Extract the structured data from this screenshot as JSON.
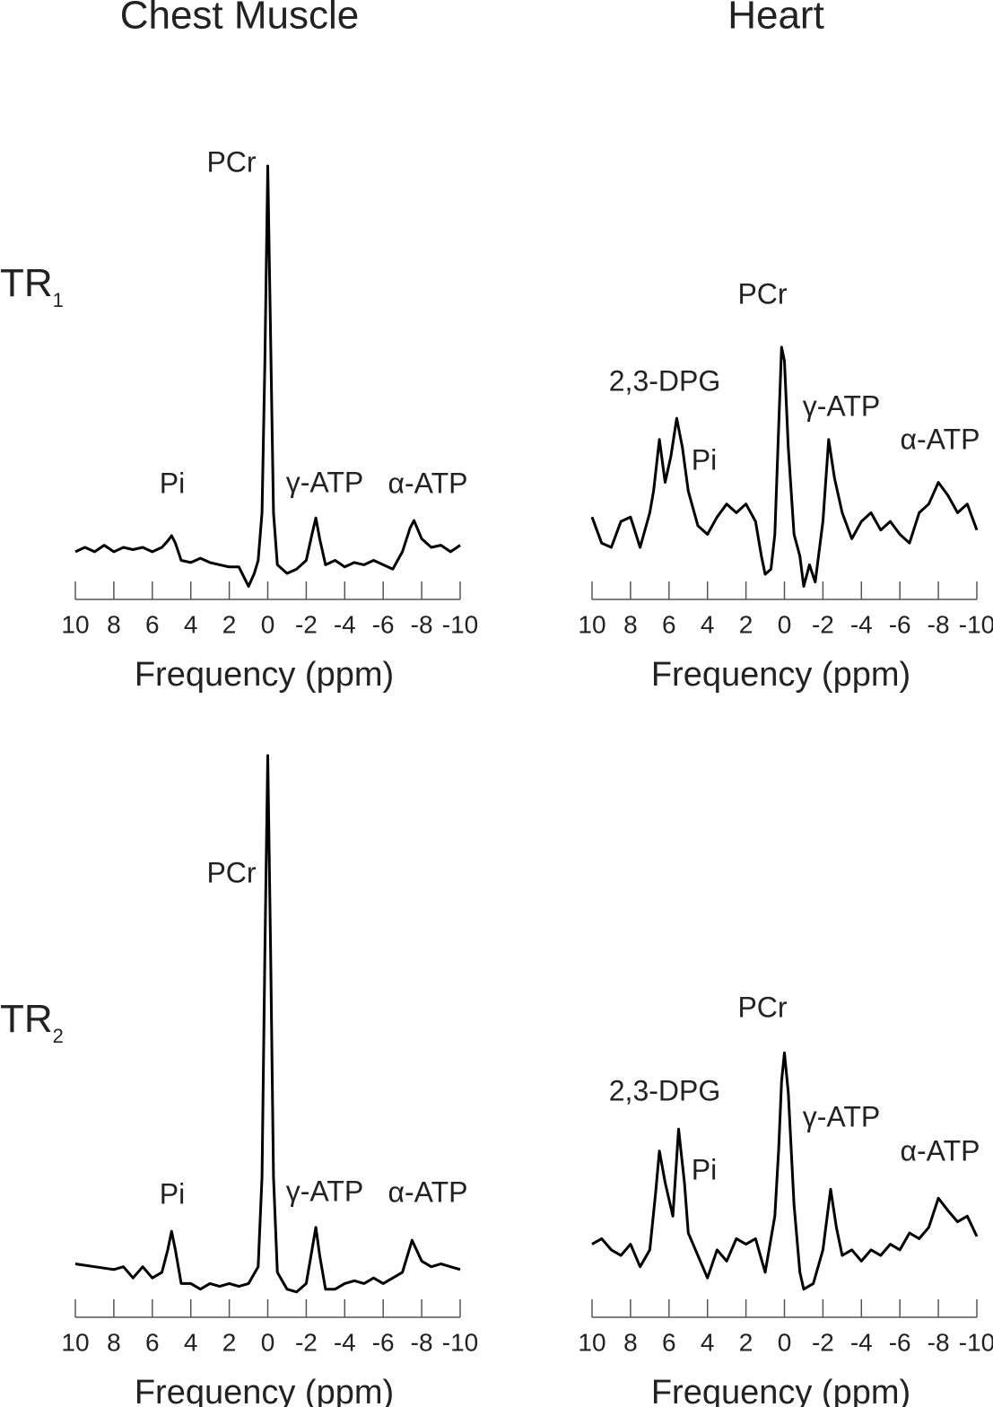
{
  "column_titles": [
    "Chest Muscle",
    "Heart"
  ],
  "row_labels": [
    {
      "text": "TR",
      "subscript": "1"
    },
    {
      "text": "TR",
      "subscript": "2"
    }
  ],
  "chart_data": [
    {
      "type": "line",
      "color": "#000000",
      "xlabel": "Frequency (ppm)",
      "xlim": [
        10,
        -10
      ],
      "xticks": [
        10,
        8,
        6,
        4,
        2,
        0,
        -2,
        -4,
        -6,
        -8,
        -10
      ],
      "ylim": [
        0,
        100
      ],
      "annotations": [
        "PCr",
        "Pi",
        "γ-ATP",
        "α-ATP"
      ],
      "x": [
        10,
        9.5,
        9,
        8.5,
        8,
        7.5,
        7,
        6.5,
        6,
        5.5,
        5.2,
        5,
        4.8,
        4.5,
        4,
        3.5,
        3,
        2.5,
        2,
        1.5,
        1,
        0.7,
        0.5,
        0.3,
        0.15,
        0,
        -0.15,
        -0.3,
        -0.5,
        -1,
        -1.5,
        -2,
        -2.3,
        -2.5,
        -2.7,
        -3,
        -3.5,
        -4,
        -4.5,
        -5,
        -5.5,
        -6,
        -6.5,
        -7,
        -7.4,
        -7.6,
        -8,
        -8.5,
        -9,
        -9.5,
        -10
      ],
      "values": [
        11,
        12,
        11,
        12.5,
        11,
        12,
        11.5,
        12,
        11,
        12,
        13.5,
        14.7,
        13,
        9,
        8.5,
        9.5,
        8.5,
        8,
        7.5,
        7.5,
        3,
        6,
        9,
        20,
        55,
        100,
        60,
        20,
        8,
        6,
        7,
        9,
        15,
        18.8,
        14,
        8,
        9,
        7.5,
        8.5,
        8,
        9,
        8,
        7,
        11,
        16.5,
        18.2,
        14,
        12,
        12.5,
        11,
        12.5
      ]
    },
    {
      "type": "line",
      "color": "#000000",
      "xlabel": "Frequency (ppm)",
      "xlim": [
        10,
        -10
      ],
      "xticks": [
        10,
        8,
        6,
        4,
        2,
        0,
        -2,
        -4,
        -6,
        -8,
        -10
      ],
      "ylim": [
        0,
        100
      ],
      "annotations": [
        "PCr",
        "2,3-DPG",
        "Pi",
        "γ-ATP",
        "α-ATP"
      ],
      "x": [
        10,
        9.5,
        9,
        8.5,
        8,
        7.5,
        7,
        6.8,
        6.5,
        6.2,
        5.9,
        5.6,
        5.3,
        5,
        4.5,
        4,
        3.5,
        3,
        2.5,
        2,
        1.5,
        1.2,
        1,
        0.7,
        0.5,
        0.3,
        0.15,
        0,
        -0.2,
        -0.5,
        -0.8,
        -1,
        -1.3,
        -1.6,
        -2,
        -2.3,
        -2.6,
        -3,
        -3.5,
        -4,
        -4.5,
        -5,
        -5.5,
        -6,
        -6.5,
        -7,
        -7.5,
        -8,
        -8.5,
        -9,
        -9.5,
        -10
      ],
      "values": [
        19,
        13,
        12,
        18,
        19,
        12,
        20,
        25,
        36.9,
        27,
        33,
        41.8,
        35,
        25,
        17,
        15,
        19,
        22,
        20,
        22,
        18,
        10,
        5.8,
        7,
        15,
        40,
        58.2,
        55,
        35,
        15,
        10,
        3,
        8,
        4,
        18,
        36.9,
        28,
        20,
        14,
        18,
        20,
        16,
        18,
        15,
        13,
        20,
        22,
        27,
        24,
        20,
        22,
        16
      ]
    },
    {
      "type": "line",
      "color": "#000000",
      "xlabel": "Frequency (ppm)",
      "xlim": [
        10,
        -10
      ],
      "xticks": [
        10,
        8,
        6,
        4,
        2,
        0,
        -2,
        -4,
        -6,
        -8,
        -10
      ],
      "ylim": [
        0,
        100
      ],
      "annotations": [
        "PCr",
        "Pi",
        "γ-ATP",
        "α-ATP"
      ],
      "x": [
        10,
        9,
        8,
        7.5,
        7,
        6.5,
        6,
        5.5,
        5.2,
        5,
        4.8,
        4.5,
        4,
        3.5,
        3,
        2.5,
        2,
        1.5,
        1,
        0.5,
        0.3,
        0.15,
        0,
        -0.15,
        -0.3,
        -0.5,
        -1,
        -1.5,
        -2,
        -2.3,
        -2.5,
        -2.7,
        -3,
        -3.5,
        -4,
        -4.5,
        -5,
        -5.5,
        -6,
        -6.5,
        -7,
        -7.5,
        -8,
        -8.5,
        -9,
        -9.5,
        -10
      ],
      "values": [
        9.5,
        9,
        8.5,
        9,
        7,
        9,
        7,
        8,
        12,
        15.3,
        12,
        6,
        6,
        5,
        6,
        5.5,
        6,
        5.5,
        6,
        9,
        25,
        65,
        100,
        65,
        25,
        8,
        5,
        4.5,
        6,
        12,
        16,
        11,
        5,
        5,
        6,
        6.5,
        6,
        7,
        6,
        7,
        8,
        13.7,
        10,
        9,
        9.5,
        9,
        8.5
      ]
    },
    {
      "type": "line",
      "color": "#000000",
      "xlabel": "Frequency (ppm)",
      "xlim": [
        10,
        -10
      ],
      "xticks": [
        10,
        8,
        6,
        4,
        2,
        0,
        -2,
        -4,
        -6,
        -8,
        -10
      ],
      "ylim": [
        0,
        100
      ],
      "annotations": [
        "PCr",
        "2,3-DPG",
        "Pi",
        "γ-ATP",
        "α-ATP"
      ],
      "x": [
        10,
        9.5,
        9,
        8.5,
        8,
        7.5,
        7,
        6.7,
        6.5,
        6.2,
        5.8,
        5.5,
        5.2,
        5,
        4.5,
        4,
        3.5,
        3,
        2.5,
        2,
        1.5,
        1,
        0.5,
        0.3,
        0.15,
        0,
        -0.2,
        -0.5,
        -0.8,
        -1,
        -1.5,
        -2,
        -2.4,
        -2.7,
        -3,
        -3.5,
        -4,
        -4.5,
        -5,
        -5.5,
        -6,
        -6.5,
        -7,
        -7.5,
        -8,
        -8.5,
        -9,
        -9.5,
        -10
      ],
      "values": [
        13,
        14,
        12,
        11,
        13,
        9,
        12,
        22,
        29.6,
        24,
        18,
        33.5,
        24,
        15,
        11,
        7,
        12,
        10,
        14,
        13,
        14,
        8,
        18,
        30,
        42,
        47.1,
        40,
        20,
        8,
        5,
        6,
        12,
        22.8,
        16,
        11,
        12,
        10,
        12,
        11,
        13,
        12,
        15,
        14,
        16,
        21.2,
        19,
        17,
        18,
        14.4
      ]
    }
  ]
}
